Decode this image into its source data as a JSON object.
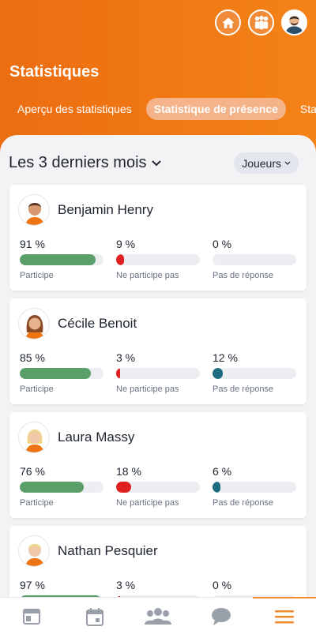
{
  "header": {
    "title": "Statistiques",
    "tabs": [
      {
        "label": "Aperçu des statistiques"
      },
      {
        "label": "Statistique de présence",
        "active": true
      },
      {
        "label": "Statis"
      }
    ]
  },
  "filters": {
    "period": "Les 3 derniers mois",
    "group": "Joueurs"
  },
  "stat_labels": {
    "participate": "Participe",
    "not_participate": "Ne participe pas",
    "no_answer": "Pas de réponse"
  },
  "colors": {
    "brand": "#ef7414",
    "participate": "#5a9e6a",
    "not_participate": "#e02020",
    "no_answer": "#1e6c80"
  },
  "players": [
    {
      "name": "Benjamin Henry",
      "participate": "91 %",
      "not_participate": "9 %",
      "no_answer": "0 %",
      "p": 0.91,
      "n": 0.09,
      "a": 0.0
    },
    {
      "name": "Cécile Benoit",
      "participate": "85 %",
      "not_participate": "3 %",
      "no_answer": "12 %",
      "p": 0.85,
      "n": 0.03,
      "a": 0.12
    },
    {
      "name": "Laura Massy",
      "participate": "76 %",
      "not_participate": "18 %",
      "no_answer": "6 %",
      "p": 0.76,
      "n": 0.18,
      "a": 0.06
    },
    {
      "name": "Nathan Pesquier",
      "participate": "97 %",
      "not_participate": "3 %",
      "no_answer": "0 %",
      "p": 0.97,
      "n": 0.03,
      "a": 0.0
    }
  ],
  "bottom_nav": [
    {
      "icon": "news-icon"
    },
    {
      "icon": "calendar-icon"
    },
    {
      "icon": "team-icon"
    },
    {
      "icon": "chat-icon"
    },
    {
      "icon": "menu-icon",
      "active": true
    }
  ]
}
